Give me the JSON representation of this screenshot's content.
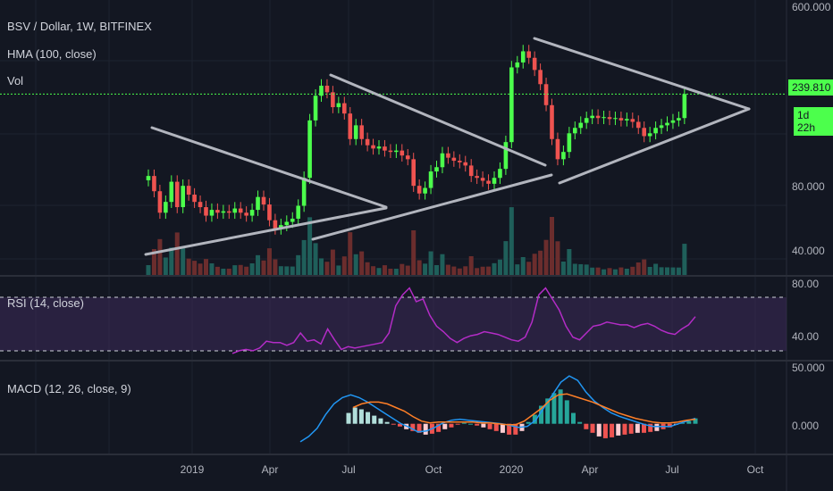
{
  "legend": {
    "main": "BSV / Dollar, 1W, BITFINEX",
    "hma": "HMA (100, close)",
    "vol": "Vol",
    "rsi": "RSI (14, close)",
    "macd": "MACD (12, 26, close, 9)"
  },
  "price_tag": {
    "value": "239.810",
    "countdown": "1d 22h"
  },
  "colors": {
    "background": "#131722",
    "up": "#26a69a",
    "up_bright": "#4cff4c",
    "down": "#ef5350",
    "rsi_line": "#b32cc6",
    "rsi_band": "#3d2a5a",
    "macd_line": "#2196f3",
    "signal_line": "#ff7f27",
    "trend_lines": "#b2b5be"
  },
  "chart_data": [
    {
      "type": "candlestick",
      "title": "BSV / Dollar, 1W, BITFINEX",
      "price_axis": {
        "scale": "log",
        "ticks": [
          "600.000",
          "80.000",
          "40.000"
        ],
        "range": [
          30,
          650
        ]
      },
      "time_axis": {
        "ticks": [
          "2019",
          "Apr",
          "Jul",
          "Oct",
          "2020",
          "Apr",
          "Jul",
          "Oct"
        ]
      },
      "last_price": 239.81,
      "closes": [
        90,
        75,
        58,
        66,
        84,
        62,
        80,
        72,
        66,
        62,
        56,
        60,
        58,
        59,
        58,
        61,
        58,
        56,
        60,
        70,
        64,
        53,
        48,
        50,
        52,
        54,
        63,
        88,
        175,
        235,
        265,
        245,
        205,
        215,
        190,
        140,
        165,
        140,
        130,
        125,
        128,
        122,
        120,
        122,
        115,
        110,
        80,
        73,
        78,
        95,
        100,
        118,
        112,
        108,
        106,
        102,
        90,
        88,
        85,
        82,
        88,
        98,
        135,
        330,
        350,
        400,
        370,
        320,
        270,
        210,
        140,
        110,
        120,
        150,
        160,
        170,
        180,
        185,
        180,
        182,
        178,
        180,
        175,
        178,
        172,
        160,
        145,
        150,
        160,
        165,
        170,
        175,
        180,
        239.81
      ]
    },
    {
      "type": "line",
      "title": "RSI (14, close)",
      "ylim": [
        30,
        85
      ],
      "y_ticks": [
        "80.00",
        "40.00"
      ],
      "values": [
        32,
        34,
        35,
        34,
        36,
        41,
        40,
        40,
        38,
        40,
        47,
        41,
        42,
        39,
        50,
        42,
        35,
        37,
        36,
        37,
        38,
        39,
        40,
        47,
        67,
        75,
        80,
        70,
        72,
        60,
        52,
        48,
        43,
        40,
        43,
        45,
        46,
        48,
        47,
        46,
        44,
        42,
        41,
        44,
        55,
        75,
        80,
        72,
        64,
        52,
        44,
        42,
        47,
        52,
        53,
        55,
        54,
        53,
        53,
        51,
        53,
        54,
        52,
        49,
        47,
        46,
        50,
        53,
        59
      ]
    },
    {
      "type": "bar+line",
      "title": "MACD (12, 26, close, 9)",
      "ylim": [
        -25,
        60
      ],
      "y_ticks": [
        "50.000",
        "0.000"
      ],
      "histogram": [
        12,
        18,
        16,
        13,
        9,
        6,
        2,
        -1,
        -3,
        -6,
        -8,
        -10,
        -12,
        -11,
        -9,
        -6,
        -4,
        -1,
        1,
        0,
        -2,
        -4,
        -6,
        -8,
        -10,
        -12,
        -12,
        -8,
        2,
        10,
        20,
        28,
        34,
        38,
        26,
        12,
        2,
        -6,
        -10,
        -14,
        -16,
        -15,
        -13,
        -12,
        -11,
        -10,
        -10,
        -9,
        -8,
        -6,
        -4,
        -1,
        1,
        3,
        6
      ],
      "macd": [
        -20,
        -14,
        -5,
        10,
        22,
        29,
        32,
        29,
        24,
        18,
        12,
        6,
        0,
        -4,
        -9,
        -8,
        -4,
        1,
        4,
        5,
        4,
        3,
        2,
        1,
        0,
        -2,
        -4,
        -3,
        4,
        18,
        32,
        46,
        53,
        48,
        35,
        25,
        18,
        12,
        8,
        5,
        2,
        -1,
        -3,
        -3,
        -3,
        0,
        3,
        6
      ],
      "signal": [
        18,
        22,
        24,
        24,
        22,
        18,
        14,
        8,
        3,
        1,
        2,
        2,
        2,
        2,
        2,
        1,
        1,
        0,
        -1,
        -1,
        3,
        10,
        17,
        26,
        32,
        33,
        30,
        27,
        24,
        20,
        16,
        12,
        9,
        6,
        4,
        2,
        1,
        1,
        2,
        4,
        5
      ]
    }
  ]
}
